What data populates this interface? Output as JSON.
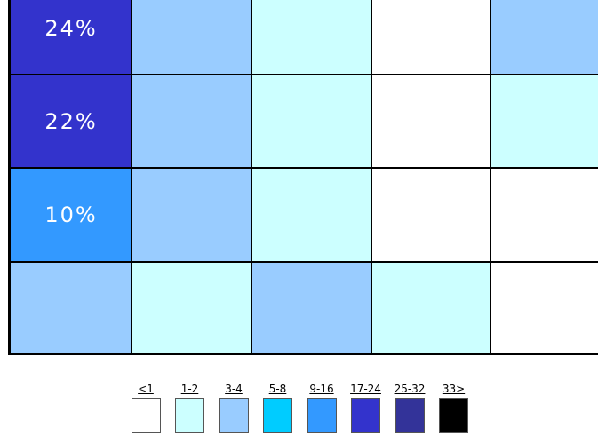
{
  "chart_data": {
    "type": "heatmap",
    "rows": [
      [
        "24%",
        "3-4",
        "1-2",
        "<1",
        "3-4"
      ],
      [
        "22%",
        "3-4",
        "1-2",
        "<1",
        "1-2"
      ],
      [
        "10%",
        "3-4",
        "1-2",
        "<1",
        "<1"
      ],
      [
        "3-4",
        "1-2",
        "3-4",
        "1-2",
        "<1"
      ]
    ],
    "cell_labels": [
      [
        "24%",
        "",
        "",
        "",
        ""
      ],
      [
        "22%",
        "",
        "",
        "",
        ""
      ],
      [
        "10%",
        "",
        "",
        "",
        ""
      ],
      [
        "",
        "",
        "",
        "",
        ""
      ]
    ],
    "first_column_bins": [
      "17-24",
      "17-24",
      "9-16",
      "3-4"
    ],
    "legend": [
      {
        "label": "<1",
        "color": "#ffffff"
      },
      {
        "label": "1-2",
        "color": "#ccffff"
      },
      {
        "label": "3-4",
        "color": "#99ccff"
      },
      {
        "label": "5-8",
        "color": "#00ccff"
      },
      {
        "label": "9-16",
        "color": "#3399ff"
      },
      {
        "label": "17-24",
        "color": "#3333cc"
      },
      {
        "label": "25-32",
        "color": "#333399"
      },
      {
        "label": "33>",
        "color": "#000000"
      }
    ]
  }
}
